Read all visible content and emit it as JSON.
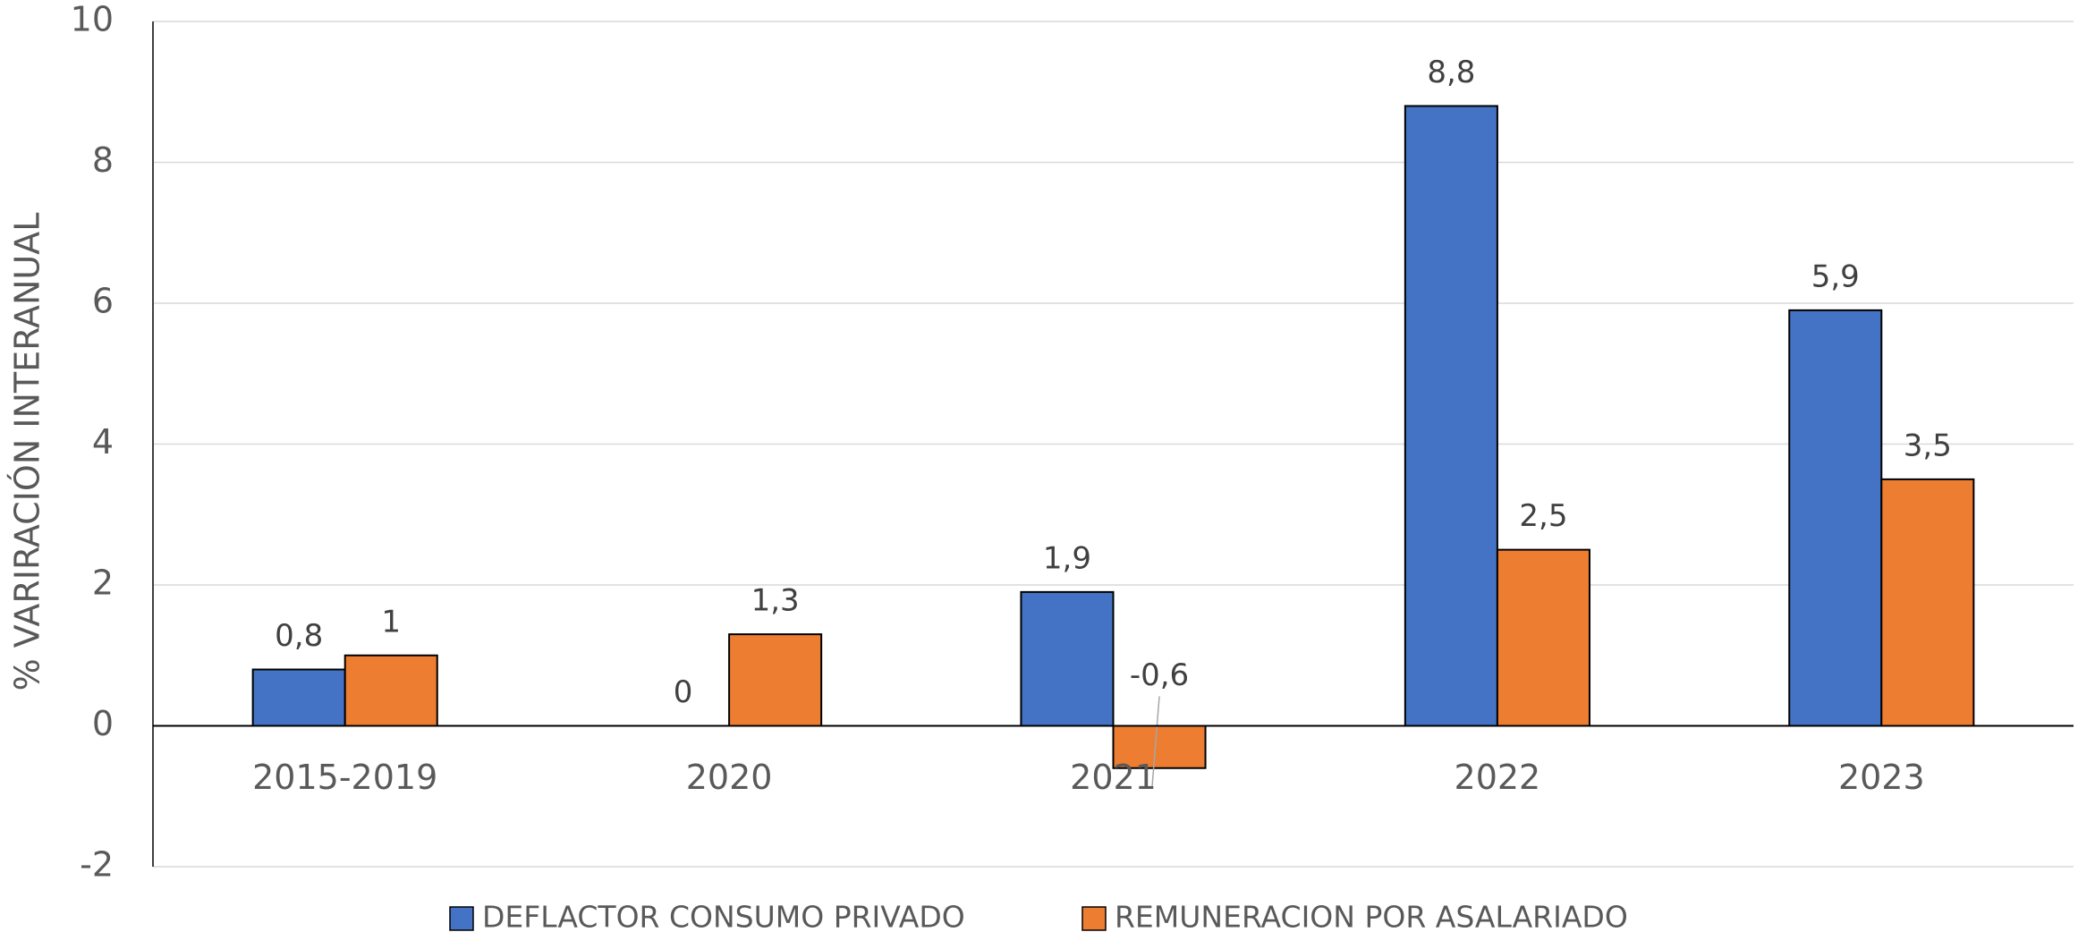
{
  "chart_data": {
    "type": "bar",
    "y_axis_label": "% VARIRACIÓN INTERANUAL",
    "categories": [
      "2015-2019",
      "2020",
      "2021",
      "2022",
      "2023"
    ],
    "series": [
      {
        "name": "DEFLACTOR CONSUMO PRIVADO",
        "color": "#4472C4",
        "values": [
          0.8,
          0,
          1.9,
          8.8,
          5.9
        ],
        "value_labels": [
          "0,8",
          "0",
          "1,9",
          "8,8",
          "5,9"
        ]
      },
      {
        "name": "REMUNERACION POR ASALARIADO",
        "color": "#ED7D31",
        "values": [
          1,
          1.3,
          -0.6,
          2.5,
          3.5
        ],
        "value_labels": [
          "1",
          "1,3",
          "-0,6",
          "2,5",
          "3,5"
        ]
      }
    ],
    "ylim": [
      -2,
      10
    ],
    "yticks": [
      -2,
      0,
      2,
      4,
      6,
      8,
      10
    ],
    "grid": true,
    "legend": "bottom"
  }
}
